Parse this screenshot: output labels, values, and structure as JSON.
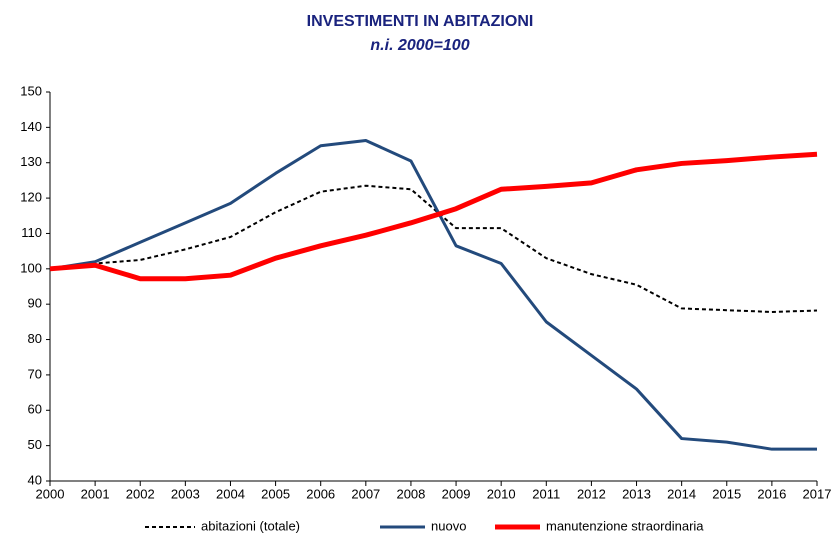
{
  "chart_data": {
    "type": "line",
    "title": "INVESTIMENTI IN ABITAZIONI",
    "subtitle": "n.i. 2000=100",
    "x": [
      2000,
      2001,
      2002,
      2003,
      2004,
      2005,
      2006,
      2007,
      2008,
      2009,
      2010,
      2011,
      2012,
      2013,
      2014,
      2015,
      2016,
      2017
    ],
    "xlim": [
      2000,
      2017
    ],
    "xticks": [
      2000,
      2001,
      2002,
      2003,
      2004,
      2005,
      2006,
      2007,
      2008,
      2009,
      2010,
      2011,
      2012,
      2013,
      2014,
      2015,
      2016,
      2017
    ],
    "ylim": [
      40,
      150
    ],
    "yticks": [
      40,
      50,
      60,
      70,
      80,
      90,
      100,
      110,
      120,
      130,
      140,
      150
    ],
    "grid": false,
    "legend": "bottom",
    "series": [
      {
        "name": "abitazioni (totale)",
        "color": "#000000",
        "line_style": "dashed",
        "line_width": 2,
        "values": [
          100,
          101.5,
          102.5,
          105.5,
          109,
          116,
          121.8,
          123.5,
          122.5,
          111.5,
          111.5,
          103,
          98.5,
          95.5,
          88.8,
          88.3,
          87.8,
          88.2
        ]
      },
      {
        "name": "nuovo",
        "color": "#234a7c",
        "line_style": "solid",
        "line_width": 3,
        "values": [
          100,
          102,
          107.5,
          113,
          118.5,
          127,
          134.8,
          136.3,
          130.5,
          106.5,
          101.5,
          85,
          75.5,
          66,
          52,
          51,
          49,
          49
        ]
      },
      {
        "name": "manutenzione straordinaria",
        "color": "#ff0000",
        "line_style": "solid",
        "line_width": 5,
        "values": [
          100,
          101,
          97.2,
          97.2,
          98.2,
          103,
          106.5,
          109.5,
          113,
          117,
          122.5,
          123.3,
          124.3,
          128,
          129.8,
          130.6,
          131.6,
          132.4
        ]
      }
    ]
  }
}
